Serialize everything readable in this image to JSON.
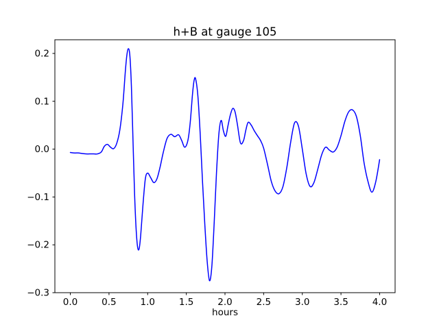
{
  "figure": {
    "title": "h+B at gauge 105",
    "xlabel": "hours"
  },
  "chart_data": {
    "type": "line",
    "title": "h+B at gauge 105",
    "xlabel": "hours",
    "ylabel": "",
    "legend": null,
    "grid": false,
    "line_color": "#0000ff",
    "line_width": 1.5,
    "xlim": [
      -0.2,
      4.2
    ],
    "ylim": [
      -0.3,
      0.2286
    ],
    "xticks": [
      0.0,
      0.5,
      1.0,
      1.5,
      2.0,
      2.5,
      3.0,
      3.5,
      4.0
    ],
    "xtick_labels": [
      "0.0",
      "0.5",
      "1.0",
      "1.5",
      "2.0",
      "2.5",
      "3.0",
      "3.5",
      "4.0"
    ],
    "yticks": [
      -0.3,
      -0.2,
      -0.1,
      0.0,
      0.1,
      0.2
    ],
    "ytick_labels": [
      "−0.3",
      "−0.2",
      "−0.1",
      "0.0",
      "0.1",
      "0.2"
    ],
    "x": [
      0.0,
      0.05,
      0.1,
      0.15,
      0.2,
      0.25,
      0.3,
      0.35,
      0.4,
      0.44,
      0.48,
      0.52,
      0.56,
      0.6,
      0.64,
      0.68,
      0.71,
      0.73,
      0.75,
      0.77,
      0.79,
      0.81,
      0.83,
      0.85,
      0.87,
      0.89,
      0.91,
      0.94,
      0.97,
      1.0,
      1.04,
      1.08,
      1.12,
      1.16,
      1.2,
      1.25,
      1.3,
      1.35,
      1.4,
      1.44,
      1.48,
      1.52,
      1.55,
      1.58,
      1.6,
      1.62,
      1.65,
      1.68,
      1.71,
      1.74,
      1.77,
      1.8,
      1.83,
      1.86,
      1.89,
      1.92,
      1.95,
      1.98,
      2.01,
      2.04,
      2.07,
      2.1,
      2.13,
      2.16,
      2.2,
      2.24,
      2.27,
      2.3,
      2.34,
      2.38,
      2.42,
      2.46,
      2.5,
      2.55,
      2.6,
      2.65,
      2.7,
      2.75,
      2.8,
      2.85,
      2.9,
      2.95,
      3.0,
      3.05,
      3.1,
      3.15,
      3.2,
      3.25,
      3.3,
      3.35,
      3.4,
      3.45,
      3.5,
      3.55,
      3.6,
      3.65,
      3.7,
      3.75,
      3.8,
      3.85,
      3.9,
      3.95,
      4.0
    ],
    "y": [
      -0.007,
      -0.008,
      -0.008,
      -0.009,
      -0.01,
      -0.01,
      -0.01,
      -0.01,
      -0.006,
      0.006,
      0.01,
      0.004,
      0.001,
      0.012,
      0.04,
      0.095,
      0.16,
      0.195,
      0.21,
      0.195,
      0.13,
      0.02,
      -0.09,
      -0.165,
      -0.205,
      -0.208,
      -0.18,
      -0.115,
      -0.062,
      -0.05,
      -0.06,
      -0.07,
      -0.062,
      -0.038,
      -0.008,
      0.022,
      0.031,
      0.026,
      0.03,
      0.018,
      0.004,
      0.018,
      0.055,
      0.115,
      0.143,
      0.147,
      0.11,
      0.03,
      -0.07,
      -0.16,
      -0.235,
      -0.275,
      -0.245,
      -0.155,
      -0.05,
      0.03,
      0.06,
      0.038,
      0.027,
      0.05,
      0.072,
      0.085,
      0.078,
      0.052,
      0.013,
      0.018,
      0.04,
      0.056,
      0.05,
      0.038,
      0.028,
      0.018,
      0.002,
      -0.032,
      -0.068,
      -0.088,
      -0.093,
      -0.078,
      -0.038,
      0.015,
      0.055,
      0.048,
      0.0,
      -0.052,
      -0.078,
      -0.07,
      -0.042,
      -0.012,
      0.004,
      -0.002,
      -0.006,
      0.004,
      0.028,
      0.058,
      0.078,
      0.082,
      0.068,
      0.028,
      -0.03,
      -0.068,
      -0.09,
      -0.068,
      -0.022
    ]
  }
}
